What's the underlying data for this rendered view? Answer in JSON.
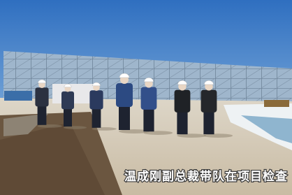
{
  "caption": "温成刚副总裁带队在项目检查"
}
